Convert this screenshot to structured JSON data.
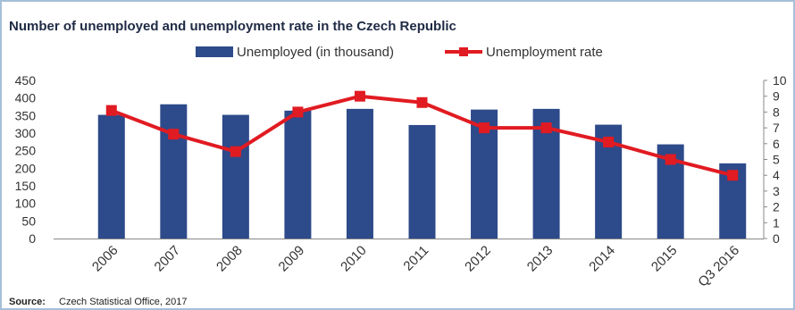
{
  "chart_data": {
    "type": "bar",
    "title": "Number of unemployed and unemployment rate in the Czech Republic",
    "categories": [
      "2006",
      "2007",
      "2008",
      "2009",
      "2010",
      "2011",
      "2012",
      "2013",
      "2014",
      "2015",
      "Q3 2016"
    ],
    "series": [
      {
        "name": "Unemployed (in thousand)",
        "type": "bar",
        "axis": "left",
        "color": "#2d4a8a",
        "values": [
          352,
          382,
          352,
          364,
          369,
          323,
          367,
          369,
          324,
          268,
          214
        ]
      },
      {
        "name": "Unemployment rate",
        "type": "line",
        "axis": "right",
        "color": "#e11b22",
        "values": [
          8.1,
          6.6,
          5.5,
          8.0,
          9.0,
          8.6,
          7.0,
          7.0,
          6.1,
          5.0,
          4.0
        ]
      }
    ],
    "y_left": {
      "ylim": [
        0,
        450
      ],
      "ticks": [
        "0",
        "50",
        "100",
        "150",
        "200",
        "250",
        "300",
        "350",
        "400",
        "450"
      ]
    },
    "y_right": {
      "ylim": [
        0,
        10
      ],
      "ticks": [
        "0",
        "1",
        "2",
        "3",
        "4",
        "5",
        "6",
        "7",
        "8",
        "9",
        "10"
      ]
    },
    "legend_position": "top-center",
    "grid": false
  },
  "source": {
    "label": "Source:",
    "text": "Czech Statistical Office, 2017"
  }
}
